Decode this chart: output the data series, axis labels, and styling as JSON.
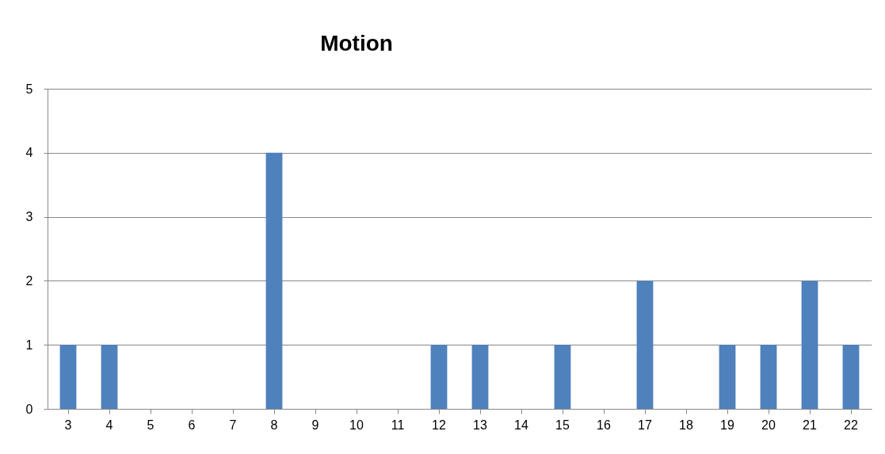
{
  "chart_data": {
    "type": "bar",
    "title": "Motion",
    "categories": [
      "3",
      "4",
      "5",
      "6",
      "7",
      "8",
      "9",
      "10",
      "11",
      "12",
      "13",
      "14",
      "15",
      "16",
      "17",
      "18",
      "19",
      "20",
      "21",
      "22"
    ],
    "values": [
      1,
      1,
      0,
      0,
      0,
      4,
      0,
      0,
      0,
      1,
      1,
      0,
      1,
      0,
      2,
      0,
      1,
      1,
      2,
      1
    ],
    "color": "#4f81bd",
    "ylim": [
      0,
      5
    ],
    "yticks": [
      0,
      1,
      2,
      3,
      4,
      5
    ],
    "grid": "y"
  }
}
